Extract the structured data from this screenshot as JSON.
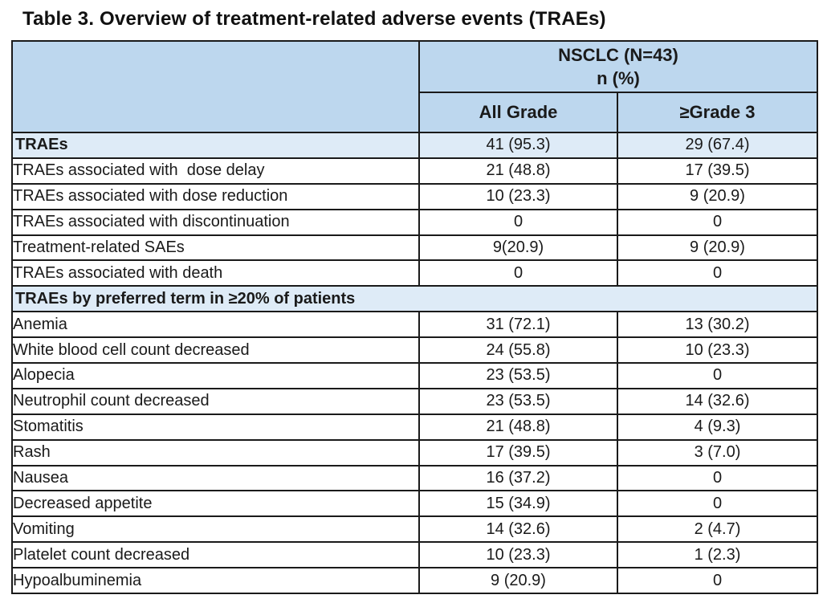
{
  "title": "Table 3. Overview of treatment-related adverse events (TRAEs)",
  "colors": {
    "header_fill": "#BDD7EE",
    "band_fill": "#DEEBF7",
    "border": "#1A1A1A"
  },
  "table": {
    "group_header_line1": "NSCLC (N=43)",
    "group_header_line2": "n (%)",
    "columns": [
      "All Grade",
      "≥Grade 3"
    ],
    "rows": [
      {
        "type": "group",
        "label": "TRAEs",
        "all_grade": "41 (95.3)",
        "grade3": "29 (67.4)"
      },
      {
        "type": "item",
        "label": "TRAEs associated with  dose delay",
        "all_grade": "21 (48.8)",
        "grade3": "17 (39.5)"
      },
      {
        "type": "item",
        "label": "TRAEs associated with dose reduction",
        "all_grade": "10 (23.3)",
        "grade3": "9 (20.9)"
      },
      {
        "type": "item",
        "label": "TRAEs associated with discontinuation",
        "all_grade": "0",
        "grade3": "0"
      },
      {
        "type": "item",
        "label": "Treatment-related SAEs",
        "all_grade": "9(20.9)",
        "grade3": "9 (20.9)"
      },
      {
        "type": "item",
        "label": "TRAEs associated with death",
        "all_grade": "0",
        "grade3": "0"
      },
      {
        "type": "section",
        "label": "TRAEs by preferred term in ≥20% of patients"
      },
      {
        "type": "item",
        "label": "Anemia",
        "all_grade": "31 (72.1)",
        "grade3": "13 (30.2)"
      },
      {
        "type": "item",
        "label": "White blood cell count decreased",
        "all_grade": "24 (55.8)",
        "grade3": "10 (23.3)"
      },
      {
        "type": "item",
        "label": "Alopecia",
        "all_grade": "23 (53.5)",
        "grade3": "0"
      },
      {
        "type": "item",
        "label": "Neutrophil count decreased",
        "all_grade": "23 (53.5)",
        "grade3": "14 (32.6)"
      },
      {
        "type": "item",
        "label": "Stomatitis",
        "all_grade": "21 (48.8)",
        "grade3": "4 (9.3)"
      },
      {
        "type": "item",
        "label": "Rash",
        "all_grade": "17 (39.5)",
        "grade3": "3 (7.0)"
      },
      {
        "type": "item",
        "label": "Nausea",
        "all_grade": "16 (37.2)",
        "grade3": "0"
      },
      {
        "type": "item",
        "label": "Decreased appetite",
        "all_grade": "15 (34.9)",
        "grade3": "0"
      },
      {
        "type": "item",
        "label": "Vomiting",
        "all_grade": "14 (32.6)",
        "grade3": "2 (4.7)"
      },
      {
        "type": "item",
        "label": "Platelet count decreased",
        "all_grade": "10 (23.3)",
        "grade3": "1 (2.3)"
      },
      {
        "type": "item",
        "label": "Hypoalbuminemia",
        "all_grade": "9 (20.9)",
        "grade3": "0"
      }
    ]
  }
}
